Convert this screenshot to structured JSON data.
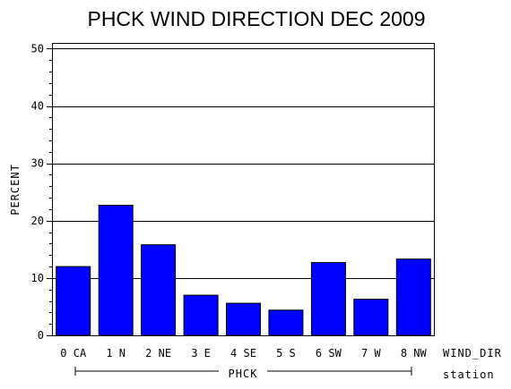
{
  "chart_data": {
    "type": "bar",
    "title": "PHCK WIND DIRECTION DEC 2009",
    "ylabel": "PERCENT",
    "xlabel": "WIND_DIR",
    "group_label": "PHCK",
    "group_axis_label": "station",
    "ylim": [
      0,
      51
    ],
    "yticks": [
      0,
      10,
      20,
      30,
      40,
      50
    ],
    "grid": true,
    "bar_color": "#0000ff",
    "categories": [
      "0 CA",
      "1 N",
      "2 NE",
      "3 E",
      "4 SE",
      "5 S",
      "6 SW",
      "7 W",
      "8 NW"
    ],
    "values": [
      12.0,
      22.7,
      15.8,
      7.0,
      5.6,
      4.4,
      12.7,
      6.3,
      13.3
    ]
  }
}
